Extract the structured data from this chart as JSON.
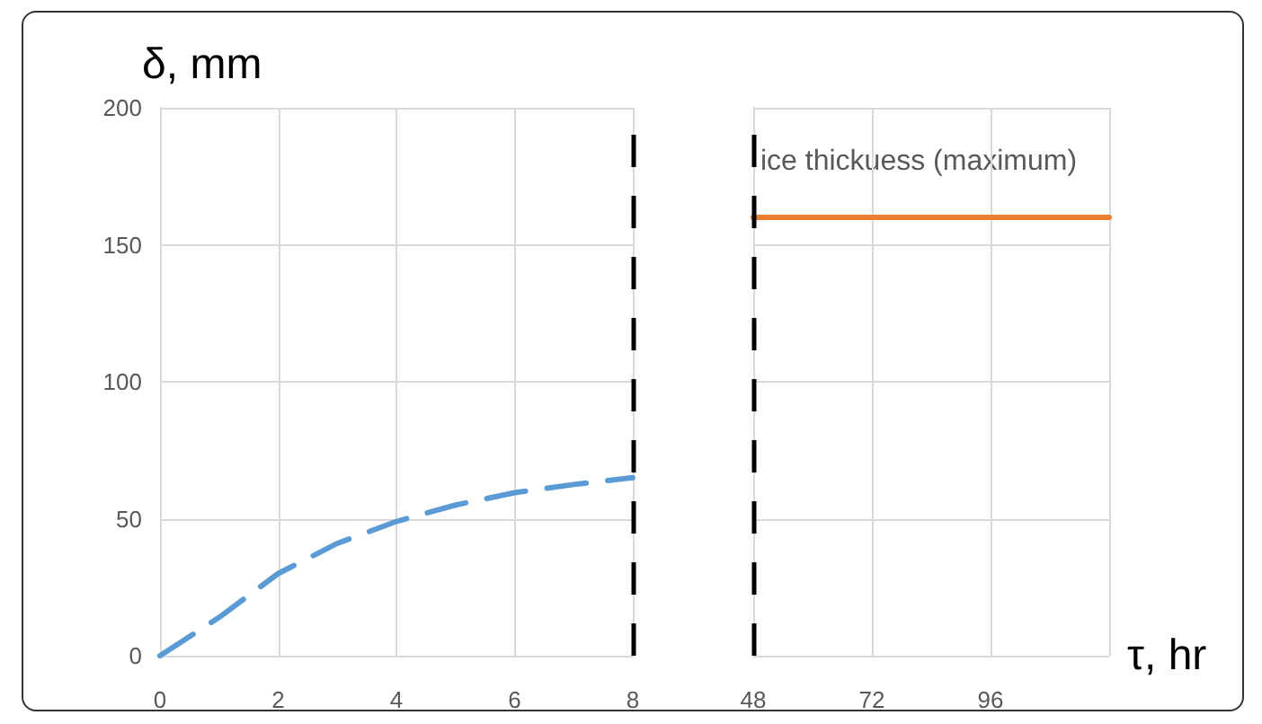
{
  "chart_data": [
    {
      "type": "line",
      "ylabel": "δ, mm",
      "xlim": [
        0,
        8
      ],
      "xticks": [
        0,
        2,
        4,
        6,
        8
      ],
      "ylim": [
        0,
        200
      ],
      "yticks": [
        0,
        50,
        100,
        150,
        200
      ],
      "grid": true,
      "marker": "none",
      "series": [
        {
          "color": "#5b9bd5",
          "line_style": "dashed",
          "x": [
            0,
            1,
            2,
            3,
            4,
            5,
            6,
            7,
            8
          ],
          "values": [
            0,
            14,
            30,
            41,
            49,
            55,
            59.5,
            62.5,
            65
          ]
        }
      ],
      "ref_lines": [
        {
          "axis": "x",
          "value": 8,
          "color": "#000000",
          "line_style": "dashed"
        }
      ]
    },
    {
      "type": "line",
      "xlabel": "τ, hr",
      "xlim": [
        48,
        120
      ],
      "xticks": [
        48,
        72,
        96,
        {
          "value": 120,
          "label": null
        }
      ],
      "ylim": [
        0,
        200
      ],
      "yticks": [
        0,
        50,
        100,
        150,
        200
      ],
      "grid": true,
      "marker": "none",
      "tick_labels": "x",
      "series": [
        {
          "color": "#ed7d31",
          "line_style": "solid",
          "x": [
            48,
            120
          ],
          "values": [
            160,
            160
          ]
        }
      ],
      "ref_lines": [
        {
          "axis": "x",
          "value": 48,
          "color": "#000000",
          "line_style": "dashed"
        }
      ],
      "annotations": [
        "ice thickuess (maximum)"
      ]
    }
  ]
}
